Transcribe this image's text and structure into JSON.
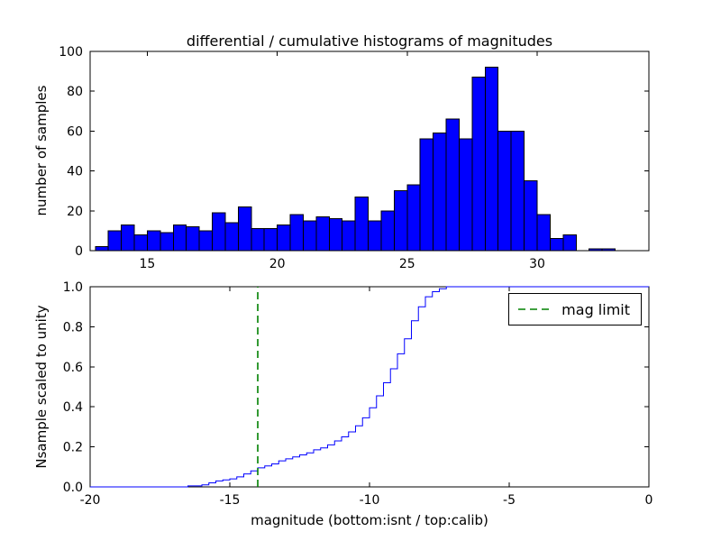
{
  "chart_data": [
    {
      "type": "bar",
      "name": "differential-histogram",
      "title": "differential / cumulative histograms of magnitudes",
      "ylabel": "number of samples",
      "xlim": [
        12.8,
        34.3
      ],
      "ylim": [
        0,
        100
      ],
      "grid": false,
      "xticks": [
        {
          "v": 15,
          "label": "15"
        },
        {
          "v": 20,
          "label": "20"
        },
        {
          "v": 25,
          "label": "25"
        },
        {
          "v": 30,
          "label": "30"
        }
      ],
      "yticks": [
        {
          "v": 0,
          "label": "0"
        },
        {
          "v": 20,
          "label": "20"
        },
        {
          "v": 40,
          "label": "40"
        },
        {
          "v": 60,
          "label": "60"
        },
        {
          "v": 80,
          "label": "80"
        },
        {
          "v": 100,
          "label": "100"
        }
      ],
      "bin_start": 13.0,
      "bin_width": 0.5,
      "values": [
        2,
        10,
        13,
        8,
        10,
        9,
        13,
        12,
        10,
        19,
        14,
        22,
        11,
        11,
        13,
        18,
        15,
        17,
        16,
        15,
        27,
        15,
        20,
        30,
        33,
        56,
        59,
        66,
        56,
        87,
        92,
        60,
        60,
        35,
        18,
        6,
        8,
        0,
        1,
        1
      ],
      "bar_color": "#0000ff",
      "bar_edge_color": "#000000"
    },
    {
      "type": "line",
      "name": "cumulative-histogram",
      "ylabel": "Nsample scaled to unity",
      "xlabel": "magnitude (bottom:isnt / top:calib)",
      "xlim": [
        -20,
        0
      ],
      "ylim": [
        0,
        1
      ],
      "grid": false,
      "xticks": [
        {
          "v": -20,
          "label": "-20"
        },
        {
          "v": -15,
          "label": "-15"
        },
        {
          "v": -10,
          "label": "-10"
        },
        {
          "v": -5,
          "label": "-5"
        },
        {
          "v": 0,
          "label": "0"
        }
      ],
      "yticks": [
        {
          "v": 0,
          "label": "0.0"
        },
        {
          "v": 0.2,
          "label": "0.2"
        },
        {
          "v": 0.4,
          "label": "0.4"
        },
        {
          "v": 0.6,
          "label": "0.6"
        },
        {
          "v": 0.8,
          "label": "0.8"
        },
        {
          "v": 1.0,
          "label": "1.0"
        }
      ],
      "line_color": "#0000ff",
      "step_points": [
        [
          -20.0,
          0.0
        ],
        [
          -16.5,
          0.005
        ],
        [
          -16.0,
          0.01
        ],
        [
          -15.75,
          0.02
        ],
        [
          -15.5,
          0.03
        ],
        [
          -15.25,
          0.035
        ],
        [
          -15.0,
          0.04
        ],
        [
          -14.75,
          0.05
        ],
        [
          -14.5,
          0.065
        ],
        [
          -14.25,
          0.08
        ],
        [
          -14.0,
          0.095
        ],
        [
          -13.75,
          0.105
        ],
        [
          -13.5,
          0.115
        ],
        [
          -13.25,
          0.13
        ],
        [
          -13.0,
          0.14
        ],
        [
          -12.75,
          0.15
        ],
        [
          -12.5,
          0.16
        ],
        [
          -12.25,
          0.17
        ],
        [
          -12.0,
          0.185
        ],
        [
          -11.75,
          0.195
        ],
        [
          -11.5,
          0.21
        ],
        [
          -11.25,
          0.23
        ],
        [
          -11.0,
          0.25
        ],
        [
          -10.75,
          0.275
        ],
        [
          -10.5,
          0.305
        ],
        [
          -10.25,
          0.345
        ],
        [
          -10.0,
          0.395
        ],
        [
          -9.75,
          0.455
        ],
        [
          -9.5,
          0.52
        ],
        [
          -9.25,
          0.59
        ],
        [
          -9.0,
          0.665
        ],
        [
          -8.75,
          0.74
        ],
        [
          -8.5,
          0.83
        ],
        [
          -8.25,
          0.9
        ],
        [
          -8.0,
          0.95
        ],
        [
          -7.75,
          0.975
        ],
        [
          -7.5,
          0.99
        ],
        [
          -7.25,
          1.0
        ],
        [
          0.0,
          1.0
        ]
      ],
      "vline": {
        "x": -14,
        "color": "#008000",
        "style": "dashed",
        "label": "mag limit"
      },
      "legend": {
        "label": "mag limit",
        "position": "upper right"
      }
    }
  ]
}
